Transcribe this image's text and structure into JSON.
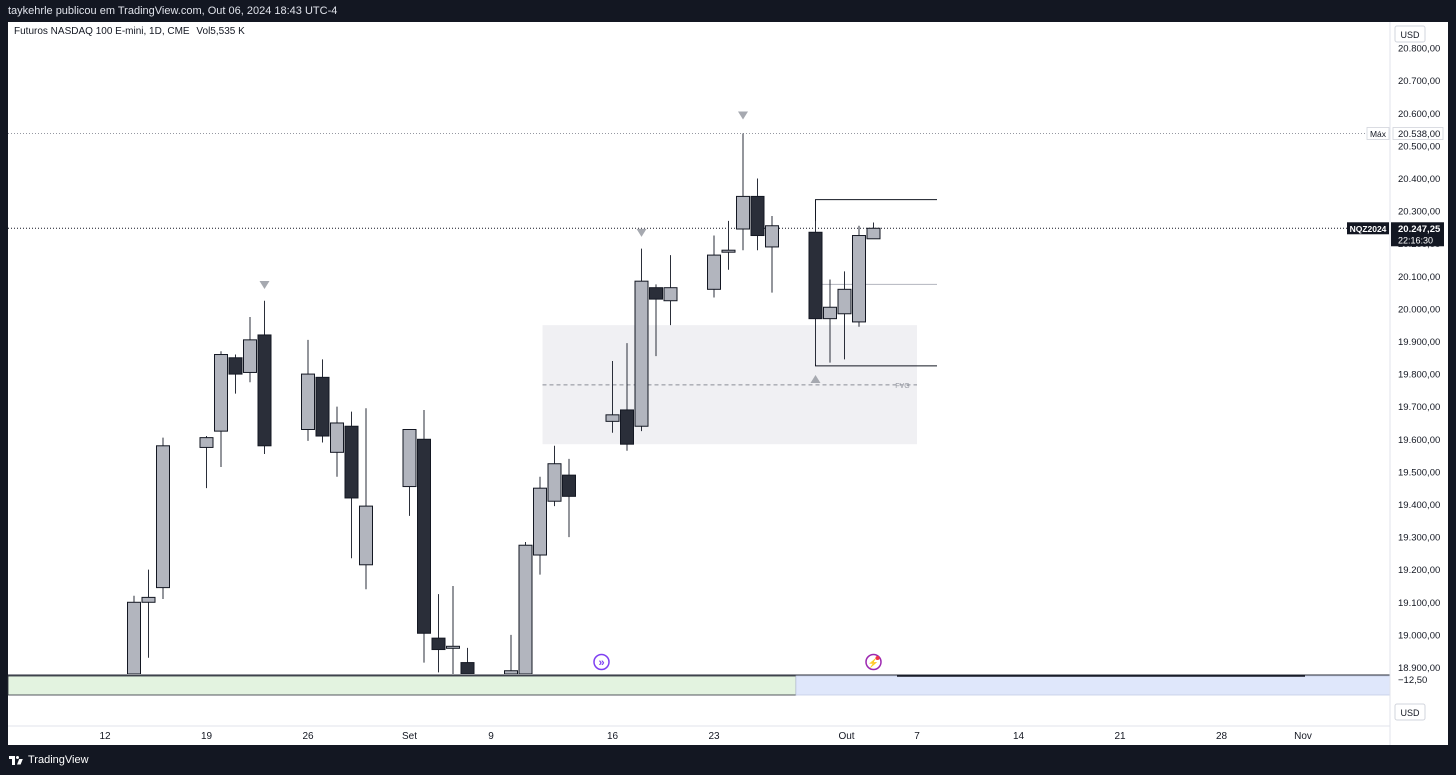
{
  "header": {
    "published": "taykehrle publicou em TradingView.com, Out 06, 2024 18:43 UTC-4"
  },
  "legend": {
    "symbol_line": "Futuros NASDAQ 100 E-mini, 1D, CME",
    "volume_label": "Vol",
    "volume_value": "5,535 K"
  },
  "footer": {
    "brand": "TradingView"
  },
  "colors": {
    "up": "#b2b5be",
    "down": "#2a2e39",
    "border": "#131722",
    "fvg": "#f0f0f3",
    "vol_up": "#e3f3e0",
    "vol_down": "#dfe7fb"
  },
  "chart_data": {
    "type": "candlestick",
    "currency": "USD",
    "ylim": [
      18880,
      20880
    ],
    "y_ticks": [
      "20.800,00",
      "20.700,00",
      "20.600,00",
      "20.500,00",
      "20.400,00",
      "20.300,00",
      "20.200,00",
      "20.100,00",
      "20.000,00",
      "19.900,00",
      "19.800,00",
      "19.700,00",
      "19.600,00",
      "19.500,00",
      "19.400,00",
      "19.300,00",
      "19.200,00",
      "19.100,00",
      "19.000,00",
      "18.900,00"
    ],
    "x_ticks": [
      "12",
      "19",
      "26",
      "Set",
      "9",
      "16",
      "23",
      "Out",
      "7",
      "14",
      "21",
      "28",
      "Nov"
    ],
    "high_marker": {
      "label": "Máx",
      "value": 20538,
      "value_label": "20.538,00"
    },
    "last_price": {
      "symbol": "NQZ2024",
      "value": 20247.25,
      "value_label": "20.247,25",
      "countdown": "22:16:30"
    },
    "fvg_label": "FVG",
    "volume_axis_label": "−12,50",
    "bottom_currency": "USD",
    "candles": [
      {
        "date": "2024-08-14",
        "open": 18880,
        "high": 19120,
        "low": 18880,
        "close": 19100
      },
      {
        "date": "2024-08-15",
        "open": 19100,
        "high": 19200,
        "low": 18930,
        "close": 19115
      },
      {
        "date": "2024-08-16",
        "open": 19145,
        "high": 19605,
        "low": 19110,
        "close": 19580
      },
      {
        "date": "2024-08-19",
        "open": 19575,
        "high": 19610,
        "low": 19450,
        "close": 19605
      },
      {
        "date": "2024-08-20",
        "open": 19625,
        "high": 19870,
        "low": 19515,
        "close": 19860
      },
      {
        "date": "2024-08-21",
        "open": 19850,
        "high": 19860,
        "low": 19740,
        "close": 19800
      },
      {
        "date": "2024-08-22",
        "open": 19805,
        "high": 19975,
        "low": 19775,
        "close": 19905
      },
      {
        "date": "2024-08-23",
        "open": 19920,
        "high": 20025,
        "low": 19555,
        "close": 19580
      },
      {
        "date": "2024-08-26",
        "open": 19630,
        "high": 19905,
        "low": 19595,
        "close": 19800
      },
      {
        "date": "2024-08-27",
        "open": 19790,
        "high": 19845,
        "low": 19590,
        "close": 19610
      },
      {
        "date": "2024-08-28",
        "open": 19560,
        "high": 19700,
        "low": 19485,
        "close": 19650
      },
      {
        "date": "2024-08-29",
        "open": 19640,
        "high": 19685,
        "low": 19235,
        "close": 19420
      },
      {
        "date": "2024-08-30",
        "open": 19215,
        "high": 19695,
        "low": 19140,
        "close": 19395
      },
      {
        "date": "2024-09-02",
        "open": 19455,
        "high": 19625,
        "low": 19365,
        "close": 19630
      },
      {
        "date": "2024-09-03",
        "open": 19600,
        "high": 19690,
        "low": 18915,
        "close": 19005
      },
      {
        "date": "2024-09-04",
        "open": 18990,
        "high": 19125,
        "low": 18885,
        "close": 18955
      },
      {
        "date": "2024-09-05",
        "open": 18965,
        "high": 19150,
        "low": 18880,
        "close": 18965
      },
      {
        "date": "2024-09-06",
        "open": 18915,
        "high": 18960,
        "low": 18880,
        "close": 18880
      },
      {
        "date": "2024-09-09",
        "open": 18880,
        "high": 19000,
        "low": 18880,
        "close": 18890
      },
      {
        "date": "2024-09-10",
        "open": 18880,
        "high": 19285,
        "low": 18880,
        "close": 19275
      },
      {
        "date": "2024-09-11",
        "open": 19245,
        "high": 19485,
        "low": 19185,
        "close": 19450
      },
      {
        "date": "2024-09-12",
        "open": 19410,
        "high": 19580,
        "low": 19395,
        "close": 19525
      },
      {
        "date": "2024-09-13",
        "open": 19490,
        "high": 19540,
        "low": 19300,
        "close": 19425
      },
      {
        "date": "2024-09-16",
        "open": 19655,
        "high": 19840,
        "low": 19620,
        "close": 19675
      },
      {
        "date": "2024-09-17",
        "open": 19690,
        "high": 19895,
        "low": 19565,
        "close": 19585
      },
      {
        "date": "2024-09-18",
        "open": 19640,
        "high": 20185,
        "low": 19625,
        "close": 20085
      },
      {
        "date": "2024-09-19",
        "open": 20065,
        "high": 20075,
        "low": 19855,
        "close": 20030
      },
      {
        "date": "2024-09-20",
        "open": 20025,
        "high": 20165,
        "low": 19950,
        "close": 20065
      },
      {
        "date": "2024-09-23",
        "open": 20060,
        "high": 20225,
        "low": 20035,
        "close": 20165
      },
      {
        "date": "2024-09-24",
        "open": 20175,
        "high": 20270,
        "low": 20120,
        "close": 20180
      },
      {
        "date": "2024-09-25",
        "open": 20245,
        "high": 20538,
        "low": 20180,
        "close": 20345
      },
      {
        "date": "2024-09-26",
        "open": 20345,
        "high": 20400,
        "low": 20180,
        "close": 20225
      },
      {
        "date": "2024-09-27",
        "open": 20190,
        "high": 20285,
        "low": 20050,
        "close": 20255
      },
      {
        "date": "2024-09-30",
        "open": 20235,
        "high": 20270,
        "low": 19830,
        "close": 19970
      },
      {
        "date": "2024-10-01",
        "open": 19970,
        "high": 20090,
        "low": 19835,
        "close": 20005
      },
      {
        "date": "2024-10-02",
        "open": 19985,
        "high": 20115,
        "low": 19845,
        "close": 20060
      },
      {
        "date": "2024-10-03",
        "open": 19960,
        "high": 20255,
        "low": 19945,
        "close": 20225
      },
      {
        "date": "2024-10-04",
        "open": 20215,
        "high": 20265,
        "low": 20215,
        "close": 20247.25
      }
    ]
  }
}
